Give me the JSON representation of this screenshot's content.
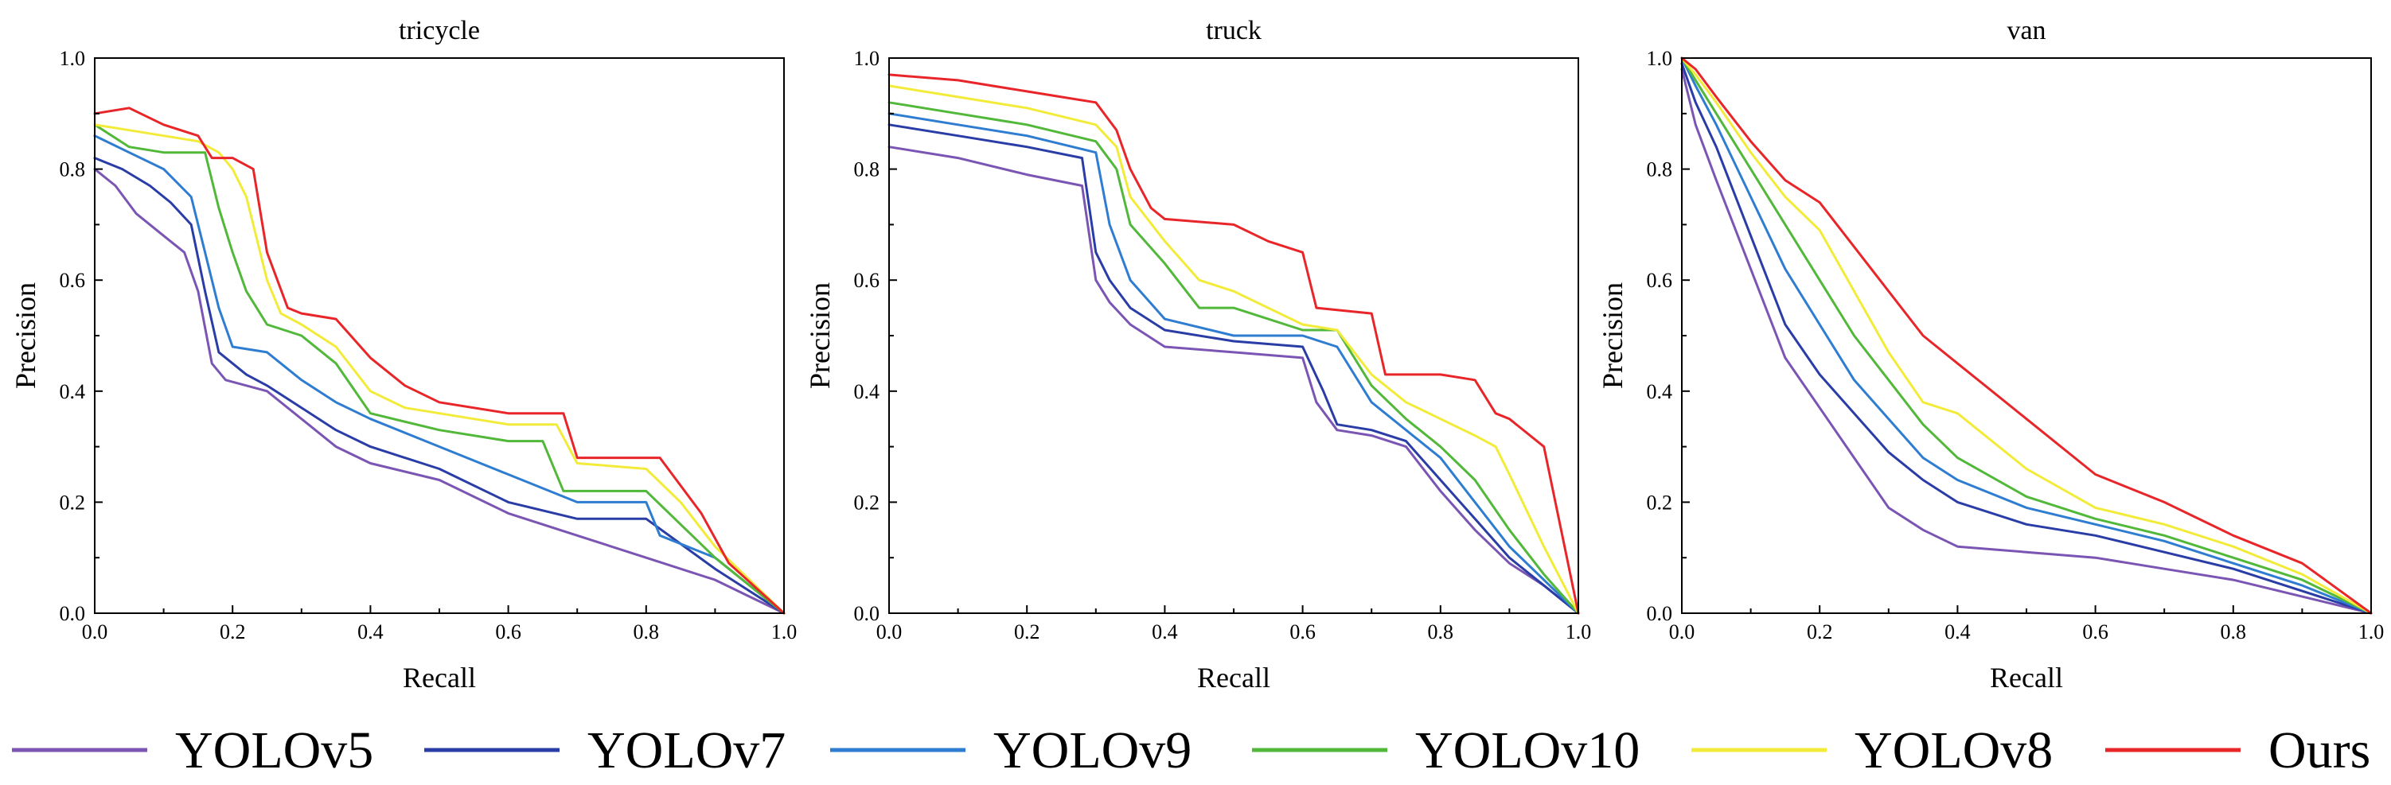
{
  "figure": {
    "legend_position": "bottom"
  },
  "series_meta": [
    {
      "name": "YOLOv5",
      "color": "#7B55B3"
    },
    {
      "name": "YOLOv7",
      "color": "#2A3DA6"
    },
    {
      "name": "YOLOv9",
      "color": "#2F7DD1"
    },
    {
      "name": "YOLOv10",
      "color": "#52B83A"
    },
    {
      "name": "YOLOv8",
      "color": "#F2EB3A"
    },
    {
      "name": "Ours",
      "color": "#E8262A"
    }
  ],
  "chart_data": [
    {
      "type": "line",
      "title": "tricycle",
      "xlabel": "Recall",
      "ylabel": "Precision",
      "xlim": [
        0,
        1
      ],
      "ylim": [
        0,
        1
      ],
      "xticks": [
        "0.0",
        "0.2",
        "0.4",
        "0.6",
        "0.8",
        "1.0"
      ],
      "yticks": [
        "0.0",
        "0.2",
        "0.4",
        "0.6",
        "0.8",
        "1.0"
      ],
      "grid": false,
      "series": [
        {
          "name": "YOLOv5",
          "x": [
            0,
            0.03,
            0.06,
            0.1,
            0.13,
            0.15,
            0.17,
            0.19,
            0.25,
            0.3,
            0.35,
            0.4,
            0.5,
            0.6,
            0.7,
            0.8,
            0.9,
            0.95,
            1.0
          ],
          "y": [
            0.8,
            0.77,
            0.72,
            0.68,
            0.65,
            0.58,
            0.45,
            0.42,
            0.4,
            0.35,
            0.3,
            0.27,
            0.24,
            0.18,
            0.14,
            0.1,
            0.06,
            0.03,
            0.0
          ]
        },
        {
          "name": "YOLOv7",
          "x": [
            0,
            0.04,
            0.08,
            0.11,
            0.14,
            0.16,
            0.18,
            0.22,
            0.25,
            0.3,
            0.35,
            0.4,
            0.5,
            0.6,
            0.7,
            0.8,
            0.9,
            1.0
          ],
          "y": [
            0.82,
            0.8,
            0.77,
            0.74,
            0.7,
            0.58,
            0.47,
            0.43,
            0.41,
            0.37,
            0.33,
            0.3,
            0.26,
            0.2,
            0.17,
            0.17,
            0.08,
            0.0
          ]
        },
        {
          "name": "YOLOv9",
          "x": [
            0,
            0.05,
            0.1,
            0.14,
            0.16,
            0.18,
            0.2,
            0.25,
            0.3,
            0.35,
            0.4,
            0.5,
            0.6,
            0.7,
            0.8,
            0.82,
            0.9,
            1.0
          ],
          "y": [
            0.86,
            0.83,
            0.8,
            0.75,
            0.65,
            0.55,
            0.48,
            0.47,
            0.42,
            0.38,
            0.35,
            0.3,
            0.25,
            0.2,
            0.2,
            0.14,
            0.1,
            0.0
          ]
        },
        {
          "name": "YOLOv10",
          "x": [
            0,
            0.05,
            0.1,
            0.16,
            0.18,
            0.2,
            0.22,
            0.25,
            0.3,
            0.35,
            0.4,
            0.5,
            0.6,
            0.65,
            0.68,
            0.8,
            0.85,
            0.9,
            1.0
          ],
          "y": [
            0.88,
            0.84,
            0.83,
            0.83,
            0.73,
            0.65,
            0.58,
            0.52,
            0.5,
            0.45,
            0.36,
            0.33,
            0.31,
            0.31,
            0.22,
            0.22,
            0.16,
            0.1,
            0.0
          ]
        },
        {
          "name": "YOLOv8",
          "x": [
            0,
            0.05,
            0.1,
            0.15,
            0.18,
            0.2,
            0.22,
            0.25,
            0.27,
            0.3,
            0.35,
            0.4,
            0.45,
            0.5,
            0.6,
            0.67,
            0.7,
            0.8,
            0.85,
            0.9,
            1.0
          ],
          "y": [
            0.88,
            0.87,
            0.86,
            0.85,
            0.83,
            0.8,
            0.75,
            0.6,
            0.54,
            0.52,
            0.48,
            0.4,
            0.37,
            0.36,
            0.34,
            0.34,
            0.27,
            0.26,
            0.2,
            0.12,
            0.0
          ]
        },
        {
          "name": "Ours",
          "x": [
            0,
            0.05,
            0.1,
            0.15,
            0.17,
            0.2,
            0.23,
            0.25,
            0.28,
            0.3,
            0.35,
            0.4,
            0.45,
            0.5,
            0.6,
            0.68,
            0.7,
            0.8,
            0.82,
            0.88,
            0.92,
            1.0
          ],
          "y": [
            0.9,
            0.91,
            0.88,
            0.86,
            0.82,
            0.82,
            0.8,
            0.65,
            0.55,
            0.54,
            0.53,
            0.46,
            0.41,
            0.38,
            0.36,
            0.36,
            0.28,
            0.28,
            0.28,
            0.18,
            0.09,
            0.0
          ]
        }
      ]
    },
    {
      "type": "line",
      "title": "truck",
      "xlabel": "Recall",
      "ylabel": "Precision",
      "xlim": [
        0,
        1
      ],
      "ylim": [
        0,
        1
      ],
      "xticks": [
        "0.0",
        "0.2",
        "0.4",
        "0.6",
        "0.8",
        "1.0"
      ],
      "yticks": [
        "0.0",
        "0.2",
        "0.4",
        "0.6",
        "0.8",
        "1.0"
      ],
      "grid": false,
      "series": [
        {
          "name": "YOLOv5",
          "x": [
            0,
            0.1,
            0.2,
            0.28,
            0.3,
            0.32,
            0.35,
            0.4,
            0.5,
            0.6,
            0.62,
            0.65,
            0.7,
            0.75,
            0.8,
            0.85,
            0.9,
            0.95,
            1.0
          ],
          "y": [
            0.84,
            0.82,
            0.79,
            0.77,
            0.6,
            0.56,
            0.52,
            0.48,
            0.47,
            0.46,
            0.38,
            0.33,
            0.32,
            0.3,
            0.22,
            0.15,
            0.09,
            0.05,
            0.0
          ]
        },
        {
          "name": "YOLOv7",
          "x": [
            0,
            0.1,
            0.2,
            0.28,
            0.3,
            0.32,
            0.35,
            0.4,
            0.5,
            0.6,
            0.63,
            0.65,
            0.7,
            0.75,
            0.8,
            0.85,
            0.9,
            0.95,
            1.0
          ],
          "y": [
            0.88,
            0.86,
            0.84,
            0.82,
            0.65,
            0.6,
            0.55,
            0.51,
            0.49,
            0.48,
            0.4,
            0.34,
            0.33,
            0.31,
            0.24,
            0.17,
            0.1,
            0.05,
            0.0
          ]
        },
        {
          "name": "YOLOv9",
          "x": [
            0,
            0.1,
            0.2,
            0.3,
            0.32,
            0.35,
            0.4,
            0.5,
            0.6,
            0.65,
            0.7,
            0.75,
            0.8,
            0.85,
            0.9,
            0.95,
            1.0
          ],
          "y": [
            0.9,
            0.88,
            0.86,
            0.83,
            0.7,
            0.6,
            0.53,
            0.5,
            0.5,
            0.48,
            0.38,
            0.33,
            0.28,
            0.2,
            0.12,
            0.06,
            0.0
          ]
        },
        {
          "name": "YOLOv10",
          "x": [
            0,
            0.1,
            0.2,
            0.3,
            0.33,
            0.35,
            0.4,
            0.45,
            0.5,
            0.6,
            0.65,
            0.7,
            0.75,
            0.8,
            0.85,
            0.9,
            0.95,
            1.0
          ],
          "y": [
            0.92,
            0.9,
            0.88,
            0.85,
            0.8,
            0.7,
            0.63,
            0.55,
            0.55,
            0.51,
            0.51,
            0.41,
            0.35,
            0.3,
            0.24,
            0.15,
            0.07,
            0.0
          ]
        },
        {
          "name": "YOLOv8",
          "x": [
            0,
            0.1,
            0.2,
            0.3,
            0.33,
            0.35,
            0.4,
            0.45,
            0.5,
            0.6,
            0.65,
            0.7,
            0.75,
            0.8,
            0.85,
            0.88,
            0.9,
            0.95,
            1.0
          ],
          "y": [
            0.95,
            0.93,
            0.91,
            0.88,
            0.84,
            0.75,
            0.67,
            0.6,
            0.58,
            0.52,
            0.51,
            0.43,
            0.38,
            0.35,
            0.32,
            0.3,
            0.25,
            0.12,
            0.0
          ]
        },
        {
          "name": "Ours",
          "x": [
            0,
            0.1,
            0.2,
            0.25,
            0.3,
            0.33,
            0.35,
            0.38,
            0.4,
            0.5,
            0.55,
            0.6,
            0.62,
            0.7,
            0.72,
            0.8,
            0.85,
            0.88,
            0.9,
            0.95,
            0.98,
            1.0
          ],
          "y": [
            0.97,
            0.96,
            0.94,
            0.93,
            0.92,
            0.87,
            0.8,
            0.73,
            0.71,
            0.7,
            0.67,
            0.65,
            0.55,
            0.54,
            0.43,
            0.43,
            0.42,
            0.36,
            0.35,
            0.3,
            0.12,
            0.0
          ]
        }
      ]
    },
    {
      "type": "line",
      "title": "van",
      "xlabel": "Recall",
      "ylabel": "Precision",
      "xlim": [
        0,
        1
      ],
      "ylim": [
        0,
        1
      ],
      "xticks": [
        "0.0",
        "0.2",
        "0.4",
        "0.6",
        "0.8",
        "1.0"
      ],
      "yticks": [
        "0.0",
        "0.2",
        "0.4",
        "0.6",
        "0.8",
        "1.0"
      ],
      "grid": false,
      "series": [
        {
          "name": "YOLOv5",
          "x": [
            0,
            0.02,
            0.05,
            0.1,
            0.15,
            0.2,
            0.25,
            0.3,
            0.35,
            0.4,
            0.5,
            0.6,
            0.7,
            0.8,
            0.9,
            1.0
          ],
          "y": [
            0.98,
            0.88,
            0.78,
            0.62,
            0.46,
            0.37,
            0.28,
            0.19,
            0.15,
            0.12,
            0.11,
            0.1,
            0.08,
            0.06,
            0.03,
            0.0
          ]
        },
        {
          "name": "YOLOv7",
          "x": [
            0,
            0.02,
            0.05,
            0.1,
            0.15,
            0.2,
            0.25,
            0.3,
            0.35,
            0.4,
            0.5,
            0.6,
            0.7,
            0.8,
            0.9,
            1.0
          ],
          "y": [
            0.99,
            0.92,
            0.84,
            0.68,
            0.52,
            0.43,
            0.36,
            0.29,
            0.24,
            0.2,
            0.16,
            0.14,
            0.11,
            0.08,
            0.04,
            0.0
          ]
        },
        {
          "name": "YOLOv9",
          "x": [
            0,
            0.02,
            0.05,
            0.1,
            0.15,
            0.2,
            0.25,
            0.3,
            0.35,
            0.4,
            0.5,
            0.6,
            0.7,
            0.8,
            0.9,
            1.0
          ],
          "y": [
            1.0,
            0.95,
            0.88,
            0.75,
            0.62,
            0.52,
            0.42,
            0.35,
            0.28,
            0.24,
            0.19,
            0.16,
            0.13,
            0.09,
            0.05,
            0.0
          ]
        },
        {
          "name": "YOLOv10",
          "x": [
            0,
            0.02,
            0.05,
            0.1,
            0.15,
            0.2,
            0.25,
            0.3,
            0.35,
            0.4,
            0.5,
            0.6,
            0.7,
            0.8,
            0.9,
            1.0
          ],
          "y": [
            1.0,
            0.96,
            0.9,
            0.8,
            0.7,
            0.6,
            0.5,
            0.42,
            0.34,
            0.28,
            0.21,
            0.17,
            0.14,
            0.1,
            0.06,
            0.0
          ]
        },
        {
          "name": "YOLOv8",
          "x": [
            0,
            0.02,
            0.05,
            0.1,
            0.15,
            0.2,
            0.25,
            0.3,
            0.35,
            0.4,
            0.5,
            0.6,
            0.7,
            0.8,
            0.9,
            1.0
          ],
          "y": [
            1.0,
            0.97,
            0.92,
            0.83,
            0.75,
            0.69,
            0.58,
            0.47,
            0.38,
            0.36,
            0.26,
            0.19,
            0.16,
            0.12,
            0.07,
            0.0
          ]
        },
        {
          "name": "Ours",
          "x": [
            0,
            0.02,
            0.05,
            0.1,
            0.15,
            0.2,
            0.25,
            0.3,
            0.35,
            0.4,
            0.5,
            0.6,
            0.7,
            0.8,
            0.9,
            1.0
          ],
          "y": [
            1.0,
            0.98,
            0.93,
            0.85,
            0.78,
            0.74,
            0.66,
            0.58,
            0.5,
            0.45,
            0.35,
            0.25,
            0.2,
            0.14,
            0.09,
            0.0
          ]
        }
      ]
    }
  ]
}
